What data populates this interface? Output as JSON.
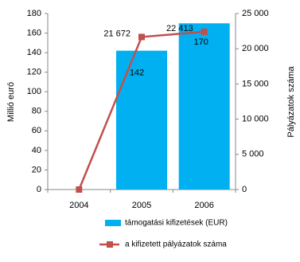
{
  "chart_data": {
    "type": "bar-line",
    "categories": [
      "2004",
      "2005",
      "2006"
    ],
    "ylabel": "Millió euró",
    "y2label": "Pályázatok száma",
    "ylim": [
      0,
      180
    ],
    "yticks": [
      0,
      20,
      40,
      60,
      80,
      100,
      120,
      140,
      160,
      180
    ],
    "y2lim": [
      0,
      25000
    ],
    "y2ticks": [
      0,
      {
        "value": 5000,
        "label": "5 000"
      },
      {
        "value": 10000,
        "label": "10 000"
      },
      {
        "value": 15000,
        "label": "15 000"
      },
      {
        "value": 20000,
        "label": "20 000"
      },
      {
        "value": 25000,
        "label": "25 000"
      }
    ],
    "legend": "bottom",
    "series": [
      {
        "name": "támogatási kifizetések (EUR)",
        "type": "bar",
        "color": "#00b0f0",
        "values": [
          null,
          142,
          170
        ]
      },
      {
        "name": "a kifizetett pályázatok száma",
        "type": "line",
        "axis": "y2",
        "color": "#c0504d",
        "values": [
          0,
          21672,
          22413
        ],
        "value_labels": [
          null,
          "21 672",
          "22 413"
        ]
      }
    ]
  }
}
